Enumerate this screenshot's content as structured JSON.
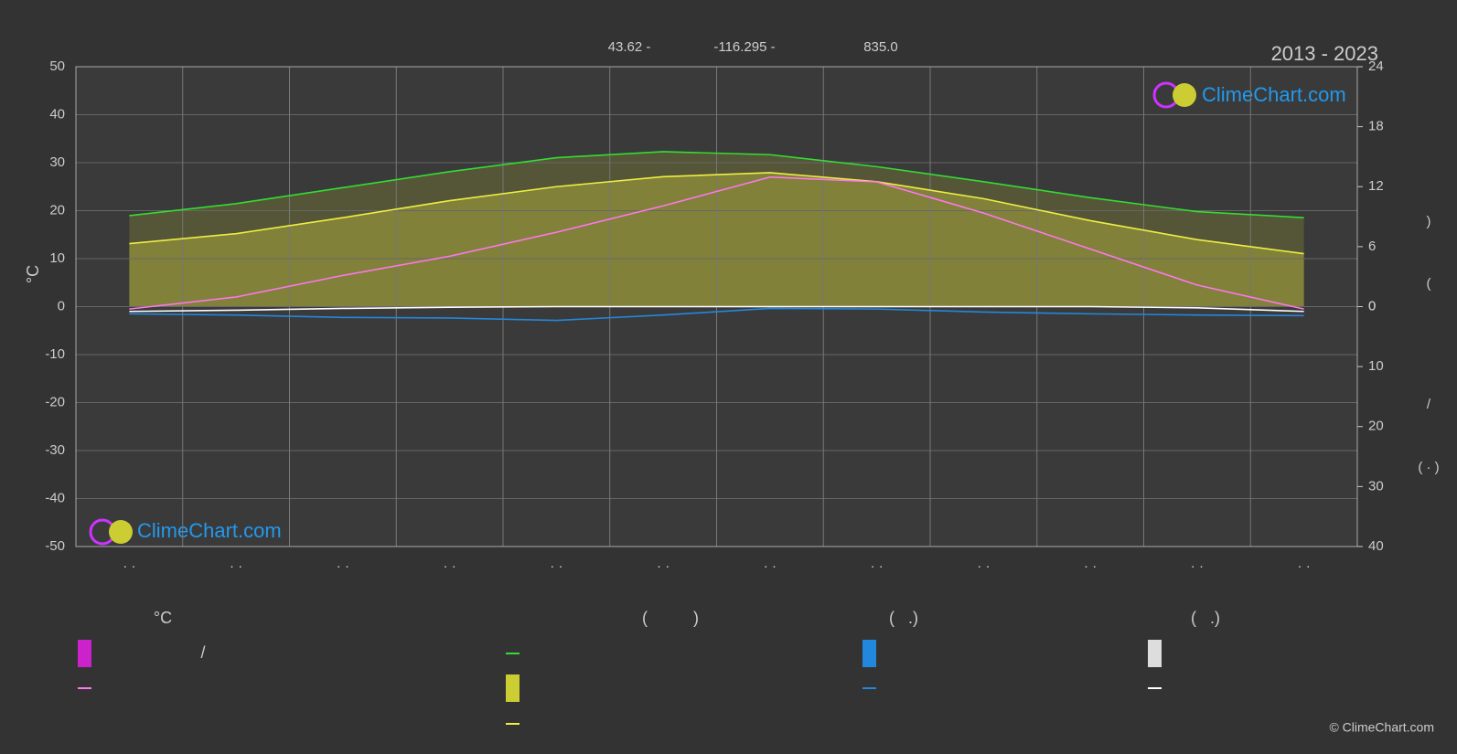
{
  "chart_data": {
    "type": "line",
    "period": "2013 - 2023",
    "coordinates": [
      "43.62 -",
      "-116.295 -",
      "835.0"
    ],
    "logo": "ClimeChart.com",
    "copyright": "© ClimeChart.com",
    "ylabel": "°C",
    "right_labels": [
      ")",
      "(",
      "/",
      "( · )"
    ],
    "legend_texts": [
      "°C",
      "(          )",
      "(   .)",
      "(   .)",
      "/"
    ],
    "categories": [
      "· ·",
      "· ·",
      "· ·",
      "· ·",
      "· ·",
      "· ·",
      "· ·",
      "· ·",
      "· ·",
      "· ·",
      "· ·",
      "· ·"
    ],
    "ylim": [
      -50,
      50
    ],
    "yticks": [
      -50,
      -40,
      -30,
      -20,
      -10,
      0,
      10,
      20,
      30,
      40,
      50
    ],
    "y2lim": [
      0,
      24
    ],
    "y2ticks": [
      0,
      6,
      12,
      18,
      24
    ],
    "y3lim": [
      0,
      40
    ],
    "y3ticks": [
      0,
      10,
      20,
      30,
      40
    ],
    "grid": true,
    "series": [
      {
        "color": "#33dd33",
        "axis": "y2",
        "fill": "#5a5a38",
        "values": [
          9.1,
          10.3,
          11.9,
          13.5,
          14.9,
          15.5,
          15.2,
          14.0,
          12.5,
          10.9,
          9.5,
          8.9
        ]
      },
      {
        "color": "#eeee44",
        "axis": "y2",
        "fill": "#8a8a3a",
        "values": [
          6.3,
          7.3,
          8.9,
          10.6,
          12.0,
          13.0,
          13.4,
          12.5,
          10.8,
          8.6,
          6.7,
          5.3
        ]
      },
      {
        "color": "#ff77ee",
        "axis": "y",
        "values": [
          -0.5,
          2,
          6.5,
          10.5,
          15.5,
          21,
          27,
          26,
          19.5,
          12,
          4.5,
          -0.5
        ]
      },
      {
        "color": "#2288dd",
        "axis": "y3",
        "values": [
          1.2,
          1.4,
          1.8,
          1.9,
          2.3,
          1.4,
          0.3,
          0.4,
          0.9,
          1.2,
          1.4,
          1.5
        ]
      },
      {
        "color": "#ffffff",
        "axis": "y3",
        "values": [
          0.8,
          0.6,
          0.3,
          0.1,
          0,
          0,
          0,
          0,
          0,
          0,
          0.2,
          0.8
        ]
      }
    ]
  }
}
